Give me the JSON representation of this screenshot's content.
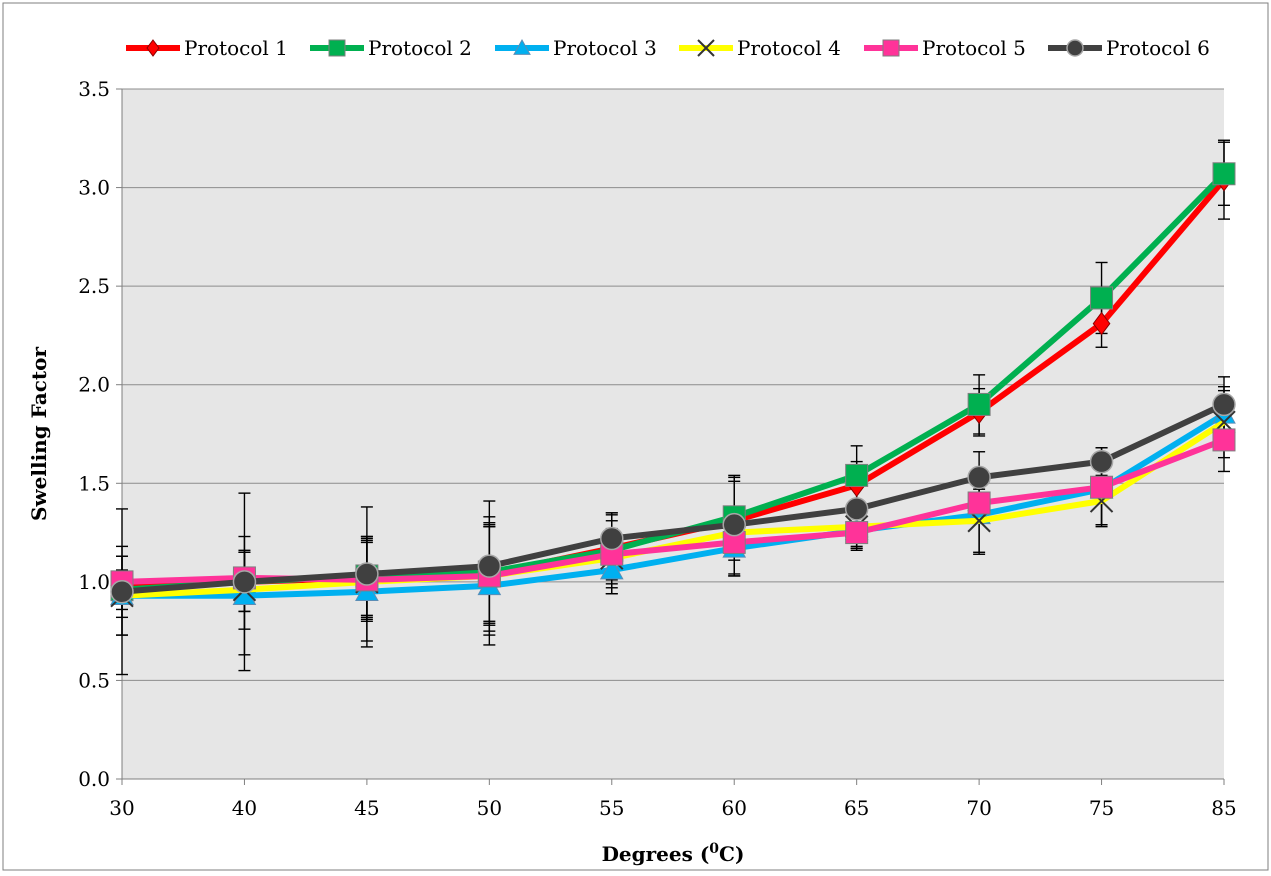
{
  "chart_data": {
    "type": "line",
    "title": "",
    "xlabel": "Degrees (",
    "xlabel_sup": "0",
    "xlabel_suffix": "C)",
    "ylabel": "Swelling Factor",
    "categories": [
      "30",
      "40",
      "45",
      "50",
      "55",
      "60",
      "65",
      "70",
      "75",
      "85"
    ],
    "ylim": [
      0,
      3.5
    ],
    "yticks": [
      "0.0",
      "0.5",
      "1.0",
      "1.5",
      "2.0",
      "2.5",
      "3.0",
      "3.5"
    ],
    "grid": "horizontal",
    "legend_position": "top",
    "series": [
      {
        "name": "Protocol 1",
        "color": "#ff0000",
        "marker": "diamond",
        "values": [
          0.97,
          1.0,
          1.02,
          1.04,
          1.17,
          1.31,
          1.49,
          1.86,
          2.31,
          3.04
        ],
        "errors": [
          0.05,
          0.15,
          0.2,
          0.25,
          0.18,
          0.2,
          0.12,
          0.12,
          0.12,
          0.2
        ]
      },
      {
        "name": "Protocol 2",
        "color": "#00b050",
        "marker": "square",
        "values": [
          0.96,
          1.0,
          1.03,
          1.05,
          1.16,
          1.33,
          1.54,
          1.9,
          2.44,
          3.07
        ],
        "errors": [
          0.1,
          0.15,
          0.2,
          0.25,
          0.15,
          0.2,
          0.15,
          0.15,
          0.18,
          0.16
        ]
      },
      {
        "name": "Protocol 3",
        "color": "#00b0f0",
        "marker": "triangle",
        "values": [
          0.93,
          0.93,
          0.95,
          0.98,
          1.06,
          1.17,
          1.26,
          1.34,
          1.47,
          1.85
        ],
        "errors": [
          0.2,
          0.3,
          0.28,
          0.3,
          0.12,
          0.14,
          0.1,
          0.2,
          0.18,
          0.12
        ]
      },
      {
        "name": "Protocol 4",
        "color": "#ffff00",
        "marker": "x",
        "values": [
          0.93,
          0.96,
          1.0,
          1.03,
          1.12,
          1.25,
          1.28,
          1.31,
          1.41,
          1.81
        ],
        "errors": [
          0.2,
          0.2,
          0.2,
          0.3,
          0.15,
          0.12,
          0.1,
          0.16,
          0.12,
          0.18
        ]
      },
      {
        "name": "Protocol 5",
        "color": "#ff3399",
        "marker": "square",
        "values": [
          1.0,
          1.02,
          1.01,
          1.03,
          1.14,
          1.2,
          1.25,
          1.4,
          1.48,
          1.72
        ],
        "errors": [
          0.18,
          0.13,
          0.2,
          0.25,
          0.2,
          0.17,
          0.08,
          0.1,
          0.2,
          0.16
        ]
      },
      {
        "name": "Protocol 6",
        "color": "#404040",
        "marker": "circle",
        "values": [
          0.95,
          1.0,
          1.04,
          1.08,
          1.22,
          1.29,
          1.37,
          1.53,
          1.61,
          1.9
        ],
        "errors": [
          0.42,
          0.45,
          0.34,
          0.33,
          0.13,
          0.25,
          0.2,
          0.13,
          0.07,
          0.14
        ]
      }
    ]
  }
}
